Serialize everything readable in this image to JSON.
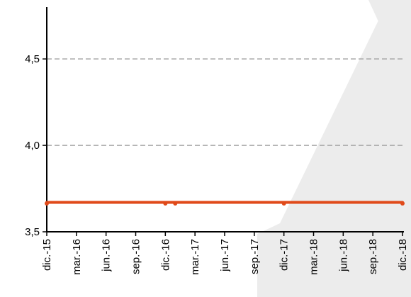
{
  "chart_data": {
    "type": "line",
    "title": "",
    "xlabel": "",
    "ylabel": "",
    "ylim": [
      3.5,
      4.8
    ],
    "yticks": [
      "3,5",
      "4,0",
      "4,5"
    ],
    "ytick_values": [
      3.5,
      4.0,
      4.5
    ],
    "grid": "horizontal dashed",
    "x_tick_labels": [
      "dic.-15",
      "mar.-16",
      "jun.-16",
      "sep.-16",
      "dic.-16",
      "mar.-17",
      "jun.-17",
      "sep.-17",
      "dic.-17",
      "mar.-18",
      "jun.-18",
      "sep.-18",
      "dic.-18"
    ],
    "series": [
      {
        "color": "#e04a1a",
        "x": [
          "dic.-15",
          "dic.-16",
          "ene.-17",
          "dic.-17",
          "dic.-18"
        ],
        "values": [
          3.67,
          3.67,
          3.67,
          3.67,
          3.67
        ]
      }
    ]
  },
  "colors": {
    "series": "#e04a1a",
    "grid": "#a6a6a6",
    "background_shape": "#e8e8e8"
  }
}
